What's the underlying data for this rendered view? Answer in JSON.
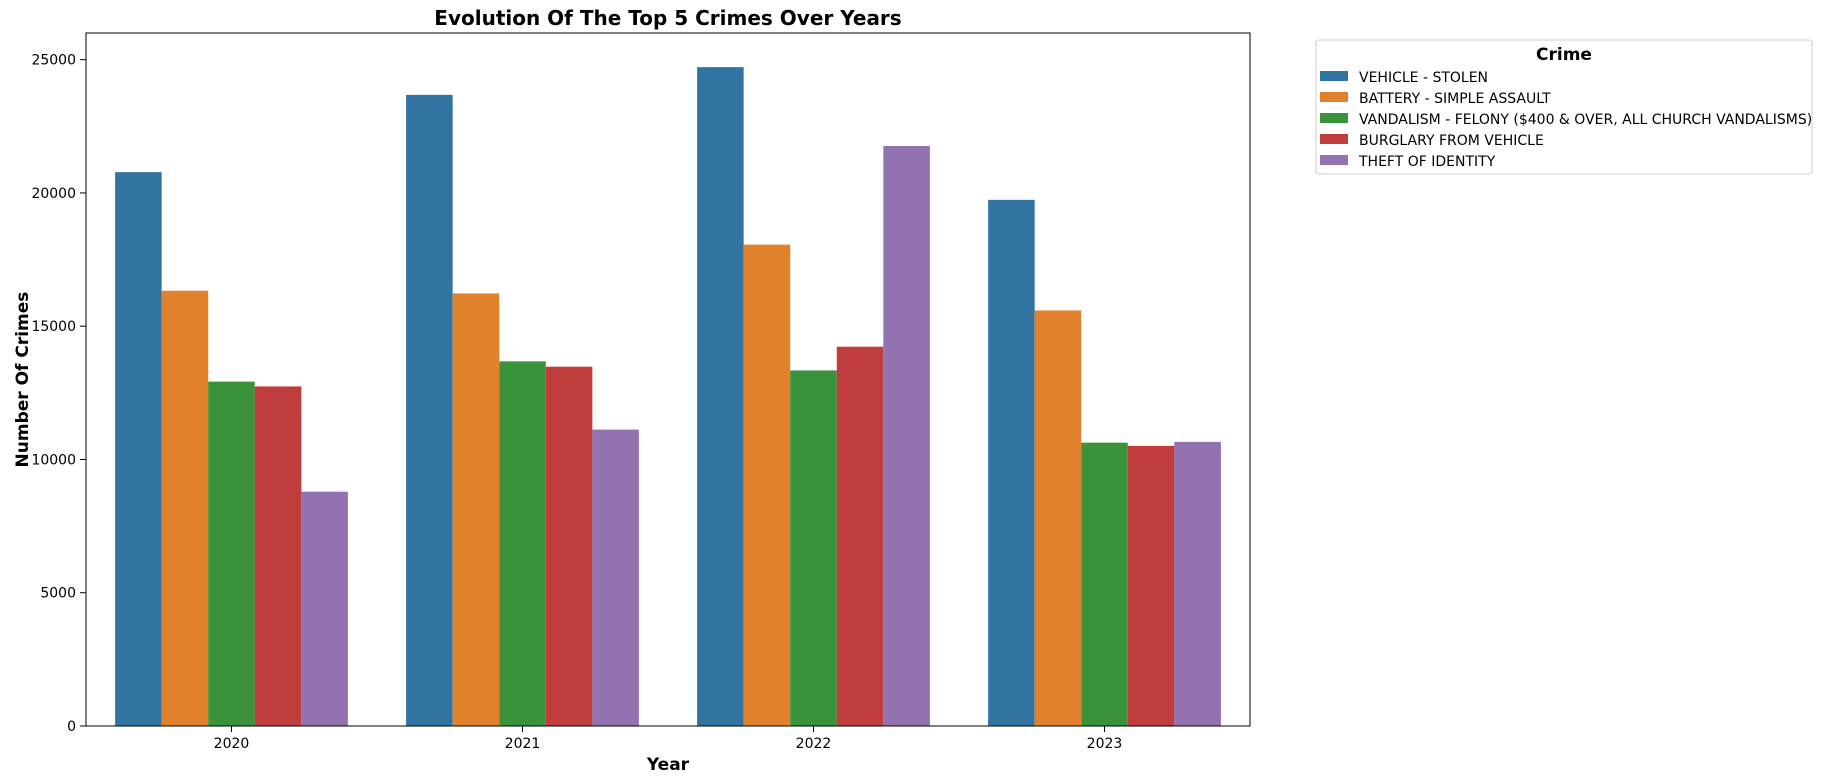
{
  "chart_data": {
    "type": "bar",
    "title": "Evolution Of The Top 5 Crimes Over Years",
    "xlabel": "Year",
    "ylabel": "Number Of Crimes",
    "categories": [
      "2020",
      "2021",
      "2022",
      "2023"
    ],
    "ylim": [
      0,
      26000
    ],
    "yticks": [
      0,
      5000,
      10000,
      15000,
      20000,
      25000
    ],
    "grid": false,
    "legend": {
      "title": "Crime",
      "placement": "outside-upper-right"
    },
    "series": [
      {
        "name": "VEHICLE - STOLEN",
        "color": "#3274a1",
        "values": [
          20780,
          23680,
          24720,
          19740
        ]
      },
      {
        "name": "BATTERY - SIMPLE ASSAULT",
        "color": "#e1812c",
        "values": [
          16330,
          16230,
          18060,
          15590
        ]
      },
      {
        "name": "VANDALISM - FELONY ($400 & OVER, ALL CHURCH VANDALISMS)",
        "color": "#3a923a",
        "values": [
          12920,
          13680,
          13340,
          10630
        ]
      },
      {
        "name": "BURGLARY FROM VEHICLE",
        "color": "#c03d3e",
        "values": [
          12740,
          13480,
          14230,
          10510
        ]
      },
      {
        "name": "THEFT OF IDENTITY",
        "color": "#9372b2",
        "values": [
          8790,
          11120,
          21760,
          10660
        ]
      }
    ]
  }
}
